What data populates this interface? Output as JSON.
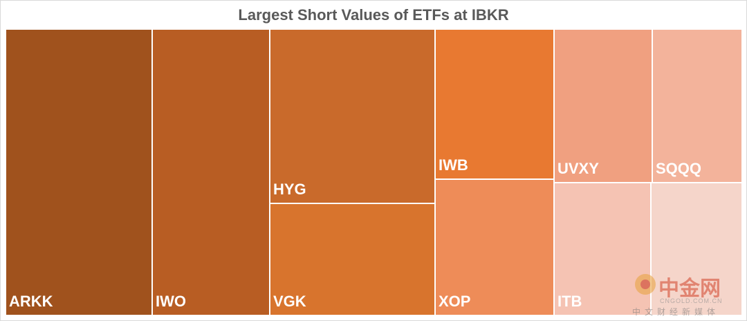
{
  "chart_data": {
    "type": "treemap",
    "title": "Largest Short Values of ETFs at IBKR",
    "items": [
      {
        "label": "ARKK",
        "color": "#a0521d"
      },
      {
        "label": "IWO",
        "color": "#b85d23"
      },
      {
        "label": "HYG",
        "color": "#c96a2b"
      },
      {
        "label": "VGK",
        "color": "#d8742d"
      },
      {
        "label": "IWB",
        "color": "#e87931"
      },
      {
        "label": "XOP",
        "color": "#ee8c58"
      },
      {
        "label": "UVXY",
        "color": "#f0a080"
      },
      {
        "label": "SQQQ",
        "color": "#f3b39b"
      },
      {
        "label": "ITB",
        "color": "#f5c3b3"
      },
      {
        "label": "",
        "color": "#f5d5ca"
      }
    ]
  },
  "watermark": {
    "brand": "中金网",
    "site": "CNGOLD.COM.CN",
    "tagline": "中文财经新媒体"
  }
}
